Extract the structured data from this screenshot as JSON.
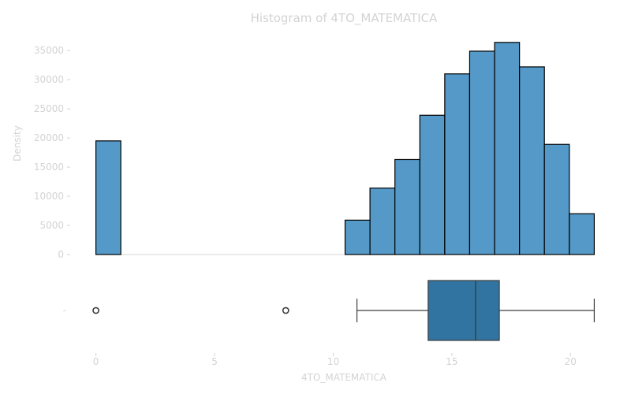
{
  "chart_data": {
    "type": "histogram",
    "title": "Histogram of 4TO_MATEMATICA",
    "xlabel": "4TO_MATEMATICA",
    "ylabel": "Density",
    "xlim": [
      -1.05,
      22.05
    ],
    "ylim": [
      0,
      38000
    ],
    "x_ticks": [
      0,
      5,
      10,
      15,
      20
    ],
    "y_ticks": [
      0,
      5000,
      10000,
      15000,
      20000,
      25000,
      30000,
      35000
    ],
    "grid": false,
    "bar_color": "#5499c7",
    "bar_edge_color": "#000000",
    "bins": [
      {
        "x0": 0.0,
        "x1": 1.05,
        "count": 19500
      },
      {
        "x0": 10.5,
        "x1": 11.55,
        "count": 5900
      },
      {
        "x0": 11.55,
        "x1": 12.6,
        "count": 11400
      },
      {
        "x0": 12.6,
        "x1": 13.65,
        "count": 16300
      },
      {
        "x0": 13.65,
        "x1": 14.7,
        "count": 23900
      },
      {
        "x0": 14.7,
        "x1": 15.75,
        "count": 31000
      },
      {
        "x0": 15.75,
        "x1": 16.8,
        "count": 34900
      },
      {
        "x0": 16.8,
        "x1": 17.85,
        "count": 36400
      },
      {
        "x0": 17.85,
        "x1": 18.9,
        "count": 32200
      },
      {
        "x0": 18.9,
        "x1": 19.95,
        "count": 18900
      },
      {
        "x0": 19.95,
        "x1": 21.0,
        "count": 7000
      }
    ],
    "boxplot": {
      "category_label": "-",
      "box_color": "#3274a1",
      "whisker_low": 11,
      "q1": 14,
      "median": 16,
      "q3": 17,
      "whisker_high": 21,
      "outliers": [
        0,
        8
      ]
    }
  }
}
